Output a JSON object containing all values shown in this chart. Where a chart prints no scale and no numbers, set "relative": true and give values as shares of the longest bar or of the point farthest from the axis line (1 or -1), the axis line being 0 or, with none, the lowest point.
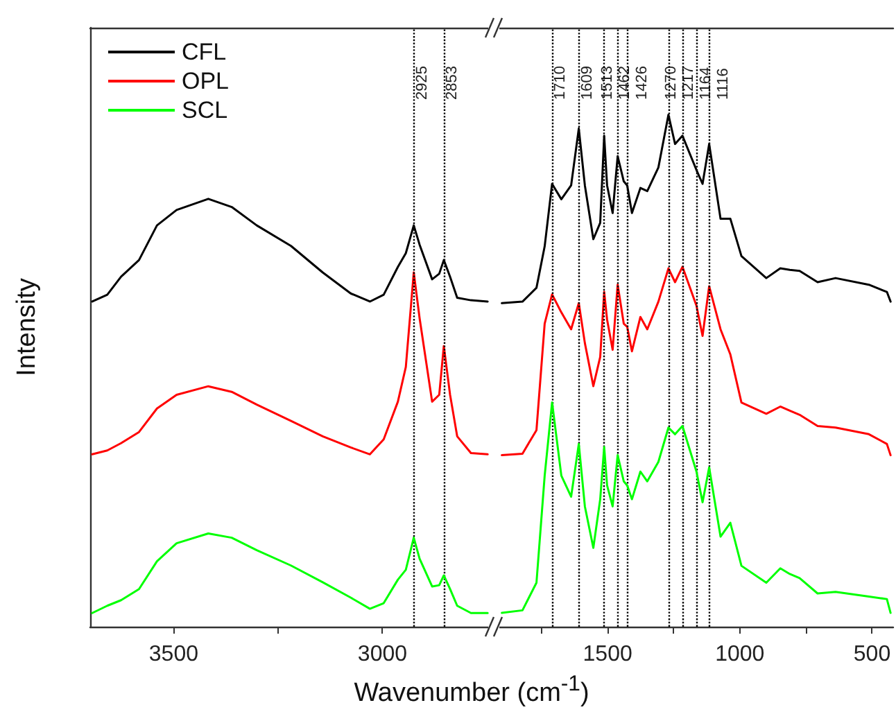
{
  "chart_data": [
    {
      "type": "line",
      "ylabel": "Intensity",
      "xlabel": "Wavenumber (cm$^{-1}$)",
      "relative": true,
      "legend": "top left",
      "tick_labels": "x",
      "xlim": [
        3700,
        2740
      ],
      "xticks": [
        3500,
        {
          "value": 3250,
          "label": null
        },
        3000
      ],
      "x": [
        3695,
        3659,
        3626,
        3583,
        3540,
        3493,
        3417,
        3361,
        3301,
        3219,
        3143,
        3076,
        3030,
        2997,
        2963,
        2944,
        2925,
        2911,
        2881,
        2864,
        2853,
        2838,
        2821,
        2788,
        2748
      ],
      "series": [
        {
          "name": "CFL",
          "color": "#000000",
          "values": [
            0.76,
            0.776,
            0.818,
            0.857,
            0.938,
            0.974,
            1,
            0.981,
            0.938,
            0.89,
            0.828,
            0.779,
            0.76,
            0.776,
            0.841,
            0.873,
            0.938,
            0.893,
            0.812,
            0.825,
            0.857,
            0.818,
            0.769,
            0.763,
            0.76
          ]
        },
        {
          "name": "OPL",
          "color": "#ff0000",
          "values": [
            0.403,
            0.412,
            0.429,
            0.455,
            0.51,
            0.542,
            0.562,
            0.549,
            0.519,
            0.481,
            0.445,
            0.419,
            0.403,
            0.438,
            0.526,
            0.607,
            0.828,
            0.721,
            0.526,
            0.542,
            0.656,
            0.542,
            0.445,
            0.406,
            0.403
          ]
        },
        {
          "name": "SCL",
          "color": "#00ff00",
          "values": [
            0.032,
            0.049,
            0.062,
            0.088,
            0.153,
            0.195,
            0.218,
            0.208,
            0.179,
            0.143,
            0.104,
            0.068,
            0.042,
            0.055,
            0.11,
            0.133,
            0.208,
            0.159,
            0.094,
            0.097,
            0.12,
            0.088,
            0.049,
            0.032,
            0.032
          ]
        }
      ],
      "ref_lines": [
        {
          "axis": "x",
          "value": 2925,
          "label": "2925",
          "color": "#000000",
          "line_style": "dotted"
        },
        {
          "axis": "x",
          "value": 2853,
          "label": "2853",
          "color": "#000000",
          "line_style": "dotted"
        }
      ]
    },
    {
      "type": "line",
      "relative": true,
      "tick_labels": "x",
      "xlim": [
        1920,
        420
      ],
      "xticks": [
        {
          "value": 1750,
          "label": null
        },
        1500,
        {
          "value": 1250,
          "label": null
        },
        1000,
        {
          "value": 750,
          "label": null
        },
        500
      ],
      "x": [
        1900,
        1822,
        1769,
        1738,
        1710,
        1675,
        1638,
        1609,
        1586,
        1554,
        1528,
        1513,
        1502,
        1481,
        1462,
        1439,
        1426,
        1408,
        1376,
        1350,
        1308,
        1270,
        1245,
        1217,
        1164,
        1141,
        1116,
        1073,
        1036,
        994,
        900,
        847,
        811,
        774,
        706,
        638,
        512,
        444,
        430
      ],
      "series": [
        {
          "color": "#000000",
          "values": [
            0.632,
            0.635,
            0.662,
            0.743,
            0.865,
            0.835,
            0.862,
            0.973,
            0.862,
            0.757,
            0.789,
            0.959,
            0.862,
            0.808,
            0.919,
            0.87,
            0.862,
            0.808,
            0.857,
            0.851,
            0.897,
            1,
            0.943,
            0.959,
            0.892,
            0.865,
            0.943,
            0.797,
            0.797,
            0.724,
            0.681,
            0.7,
            0.697,
            0.695,
            0.673,
            0.681,
            0.668,
            0.654,
            0.635
          ]
        },
        {
          "color": "#ff0000",
          "values": [
            0.335,
            0.338,
            0.384,
            0.592,
            0.649,
            0.614,
            0.581,
            0.632,
            0.554,
            0.47,
            0.527,
            0.654,
            0.6,
            0.541,
            0.668,
            0.592,
            0.586,
            0.538,
            0.605,
            0.581,
            0.635,
            0.7,
            0.673,
            0.703,
            0.627,
            0.568,
            0.665,
            0.581,
            0.532,
            0.438,
            0.416,
            0.43,
            0.422,
            0.414,
            0.392,
            0.389,
            0.376,
            0.357,
            0.335
          ]
        },
        {
          "color": "#00ff00",
          "values": [
            0.027,
            0.032,
            0.086,
            0.295,
            0.438,
            0.295,
            0.254,
            0.357,
            0.235,
            0.154,
            0.249,
            0.351,
            0.276,
            0.235,
            0.335,
            0.284,
            0.276,
            0.249,
            0.303,
            0.284,
            0.322,
            0.389,
            0.376,
            0.392,
            0.303,
            0.243,
            0.311,
            0.176,
            0.203,
            0.119,
            0.086,
            0.114,
            0.103,
            0.095,
            0.065,
            0.068,
            0.059,
            0.054,
            0.027
          ]
        }
      ],
      "ref_lines": [
        {
          "axis": "x",
          "value": 1710,
          "label": "1710",
          "color": "#000000",
          "line_style": "dotted"
        },
        {
          "axis": "x",
          "value": 1609,
          "label": "1609",
          "color": "#000000",
          "line_style": "dotted"
        },
        {
          "axis": "x",
          "value": 1513,
          "label": "1513",
          "color": "#000000",
          "line_style": "dotted"
        },
        {
          "axis": "x",
          "value": 1462,
          "label": "1462",
          "color": "#000000",
          "line_style": "dotted"
        },
        {
          "axis": "x",
          "value": 1426,
          "label": "1426",
          "color": "#000000",
          "line_style": "dotted"
        },
        {
          "axis": "x",
          "value": 1270,
          "label": "1270",
          "color": "#000000",
          "line_style": "dotted"
        },
        {
          "axis": "x",
          "value": 1217,
          "label": "1217",
          "color": "#000000",
          "line_style": "dotted"
        },
        {
          "axis": "x",
          "value": 1164,
          "label": "1164",
          "color": "#000000",
          "line_style": "dotted"
        },
        {
          "axis": "x",
          "value": 1116,
          "label": "1116",
          "color": "#000000",
          "line_style": "dotted"
        }
      ]
    }
  ]
}
